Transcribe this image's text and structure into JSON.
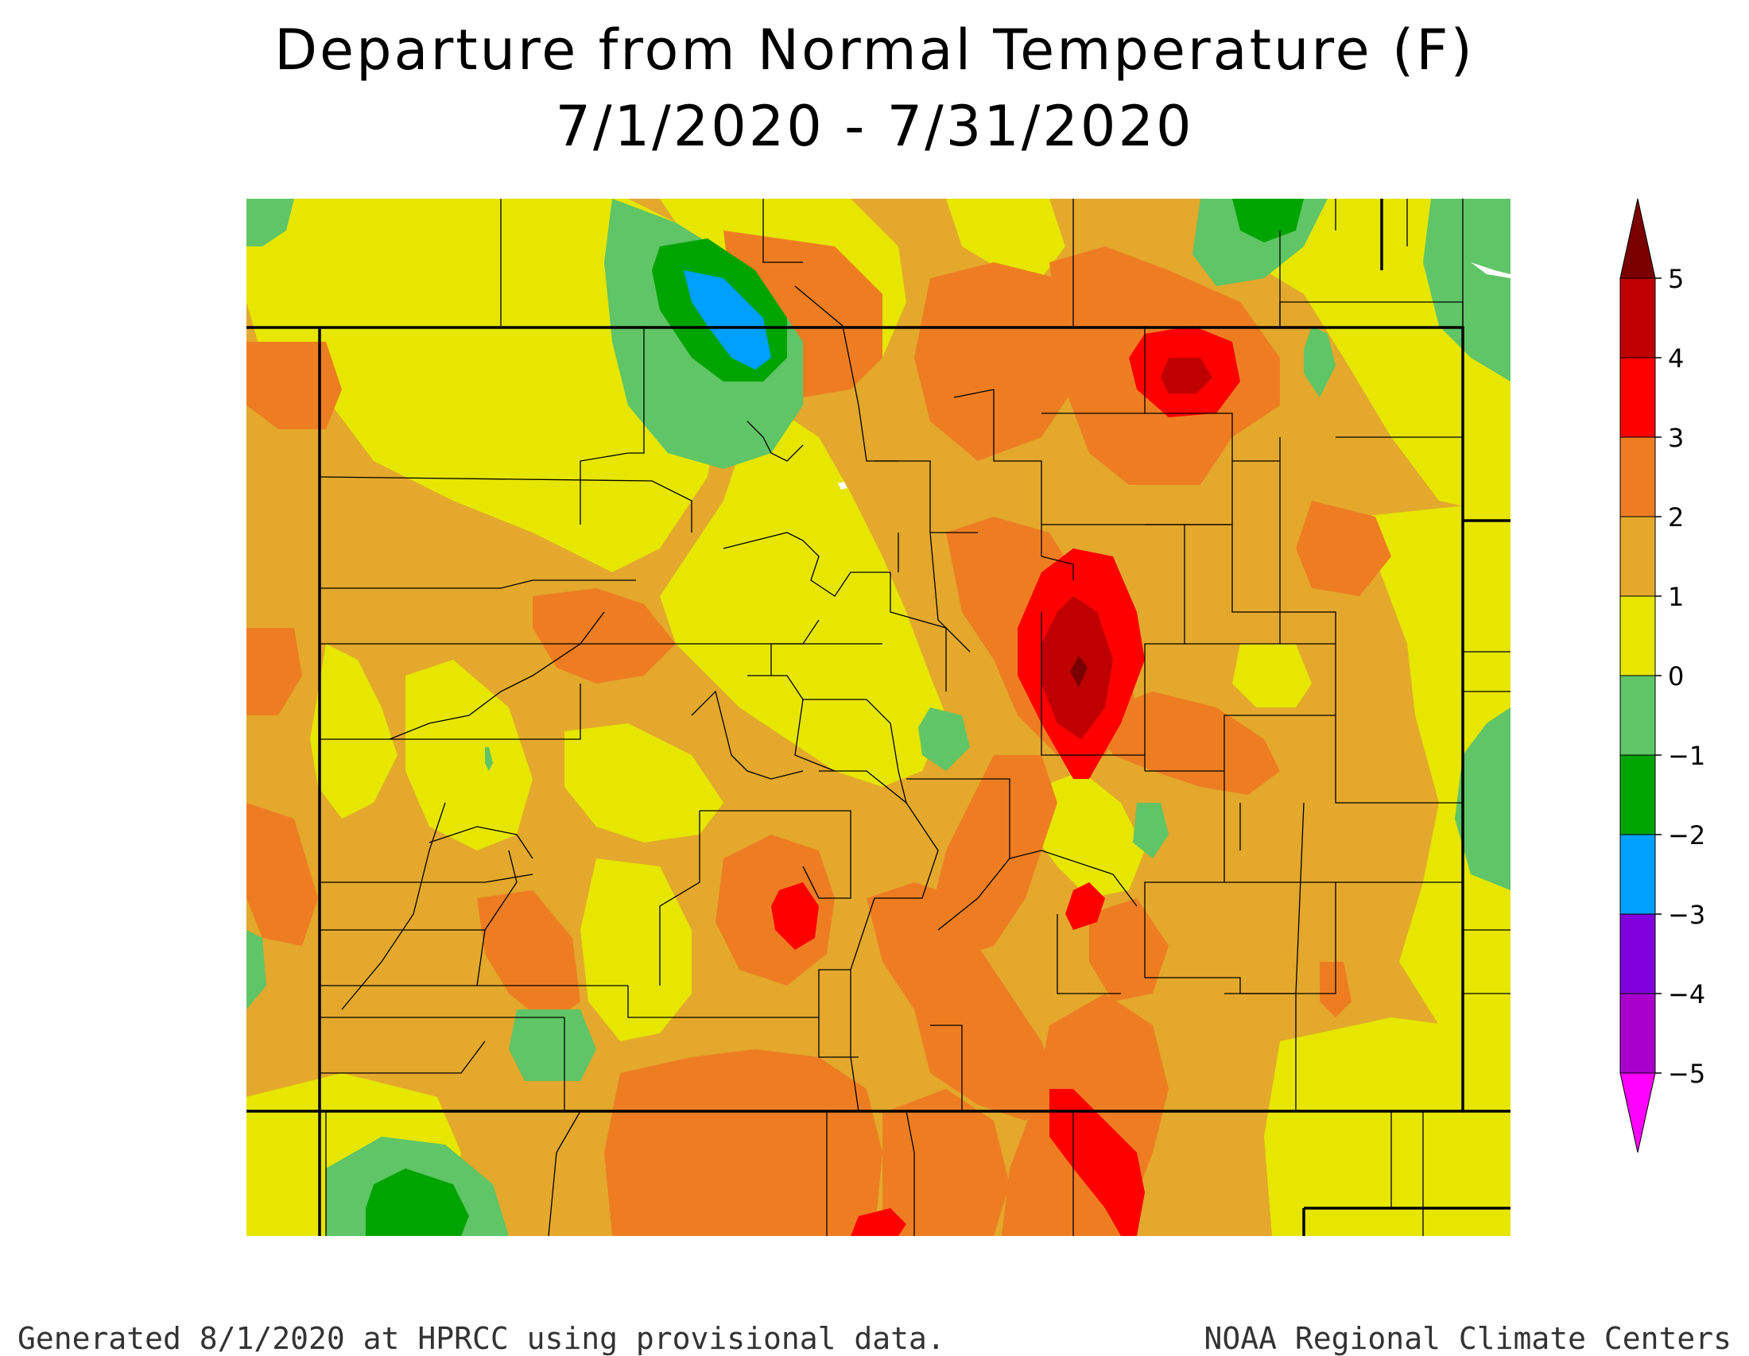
{
  "title": "Departure from Normal Temperature (F)",
  "subtitle": "7/1/2020 - 7/31/2020",
  "footer_left": "Generated 8/1/2020 at HPRCC using provisional data.",
  "footer_right": "NOAA Regional Climate Centers",
  "legend": {
    "ticks": [
      "5",
      "4",
      "3",
      "2",
      "1",
      "0",
      "−1",
      "−2",
      "−3",
      "−4",
      "−5"
    ],
    "colors": [
      "#7a0000",
      "#c00000",
      "#ff0000",
      "#ee7d22",
      "#e3a82c",
      "#e6e600",
      "#5fc566",
      "#00a400",
      "#00a0ff",
      "#8000dd",
      "#aa00cc",
      "#ff00ff"
    ]
  },
  "colors": {
    "above_0_to_1": "#e6e600",
    "above_1_to_2": "#e3a82c",
    "above_2_to_3": "#ee7d22",
    "above_3_to_4": "#ff0000",
    "above_4_to_5": "#c00000",
    "above_5": "#7a0000",
    "below_0_to_1": "#5fc566",
    "below_1_to_2": "#00a400",
    "below_2_to_3": "#00a0ff"
  }
}
